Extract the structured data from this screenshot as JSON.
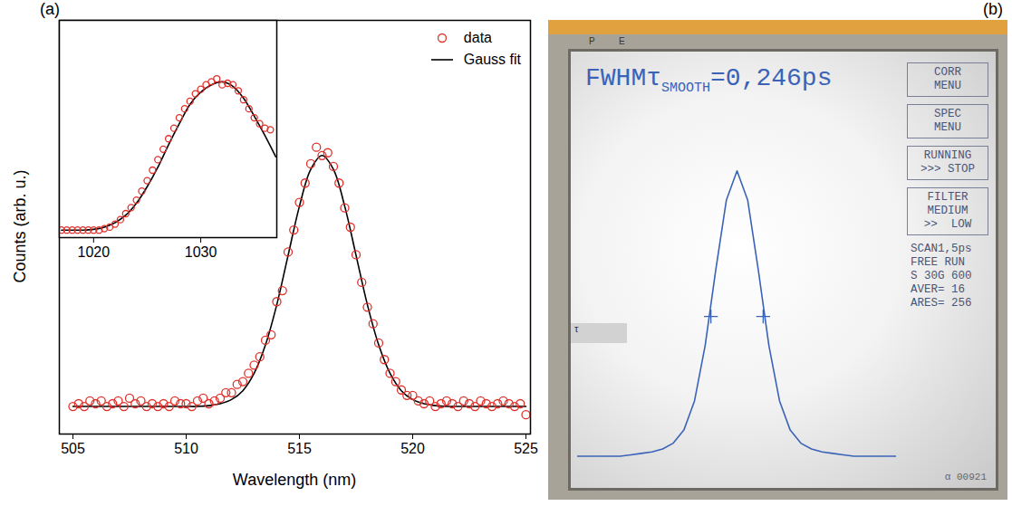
{
  "chart_data": [
    {
      "type": "scatter",
      "panel": "(a)",
      "x_label": "Wavelength (nm)",
      "y_label": "Counts (arb. u.)",
      "xlim": [
        504.4,
        525.2
      ],
      "xticks": [
        505,
        510,
        515,
        520,
        525
      ],
      "ylim": [
        0,
        1.5
      ],
      "tick_labels": "x",
      "legend": "top-right",
      "series": [
        {
          "name": "data",
          "type": "scatter",
          "marker": "circle",
          "color": "#e0302a",
          "x": [
            505.0,
            505.25,
            505.5,
            505.75,
            506.0,
            506.25,
            506.5,
            506.75,
            507.0,
            507.25,
            507.5,
            507.75,
            508.0,
            508.25,
            508.5,
            508.75,
            509.0,
            509.25,
            509.5,
            509.75,
            510.0,
            510.25,
            510.5,
            510.75,
            511.0,
            511.25,
            511.5,
            511.75,
            512.0,
            512.25,
            512.5,
            512.75,
            513.0,
            513.25,
            513.5,
            513.75,
            514.0,
            514.25,
            514.5,
            514.75,
            515.0,
            515.25,
            515.5,
            515.75,
            516.0,
            516.25,
            516.5,
            516.75,
            517.0,
            517.25,
            517.5,
            517.75,
            518.0,
            518.25,
            518.5,
            518.75,
            519.0,
            519.25,
            519.5,
            519.75,
            520.0,
            520.25,
            520.5,
            520.75,
            521.0,
            521.25,
            521.5,
            521.75,
            522.0,
            522.25,
            522.5,
            522.75,
            523.0,
            523.25,
            523.5,
            523.75,
            524.0,
            524.25,
            524.5,
            524.75,
            525.0
          ],
          "values": [
            0.1,
            0.11,
            0.1,
            0.12,
            0.11,
            0.12,
            0.1,
            0.11,
            0.12,
            0.1,
            0.13,
            0.11,
            0.12,
            0.1,
            0.11,
            0.1,
            0.11,
            0.1,
            0.12,
            0.11,
            0.11,
            0.1,
            0.12,
            0.13,
            0.11,
            0.12,
            0.13,
            0.15,
            0.15,
            0.18,
            0.19,
            0.22,
            0.25,
            0.28,
            0.34,
            0.36,
            0.48,
            0.52,
            0.66,
            0.74,
            0.84,
            0.91,
            0.98,
            1.04,
            1.01,
            1.02,
            0.97,
            0.91,
            0.82,
            0.75,
            0.65,
            0.55,
            0.46,
            0.4,
            0.33,
            0.27,
            0.22,
            0.19,
            0.16,
            0.14,
            0.14,
            0.12,
            0.11,
            0.12,
            0.1,
            0.11,
            0.12,
            0.11,
            0.1,
            0.12,
            0.11,
            0.1,
            0.12,
            0.11,
            0.1,
            0.11,
            0.12,
            0.11,
            0.1,
            0.11,
            0.07
          ]
        },
        {
          "name": "Gauss fit",
          "type": "line",
          "line_style": "solid",
          "color": "#000000",
          "x": [
            505.0,
            505.5,
            506.0,
            506.5,
            507.0,
            507.5,
            508.0,
            508.5,
            509.0,
            509.5,
            510.0,
            510.5,
            511.0,
            511.5,
            512.0,
            512.5,
            513.0,
            513.5,
            514.0,
            514.5,
            515.0,
            515.5,
            516.0,
            516.5,
            517.0,
            517.5,
            518.0,
            518.5,
            519.0,
            519.5,
            520.0,
            520.5,
            521.0,
            521.5,
            522.0,
            522.5,
            523.0,
            523.5,
            524.0,
            524.5,
            525.0
          ],
          "values": [
            0.1,
            0.1,
            0.1,
            0.1,
            0.1,
            0.1,
            0.1,
            0.1,
            0.1,
            0.1,
            0.1,
            0.1,
            0.103,
            0.11,
            0.125,
            0.157,
            0.22,
            0.323,
            0.469,
            0.648,
            0.826,
            0.96,
            1.01,
            0.96,
            0.826,
            0.648,
            0.469,
            0.323,
            0.22,
            0.157,
            0.125,
            0.11,
            0.103,
            0.1,
            0.1,
            0.1,
            0.1,
            0.1,
            0.1,
            0.1,
            0.1
          ]
        }
      ]
    },
    {
      "type": "scatter",
      "xlim": [
        1016.8,
        1037.1
      ],
      "xticks": [
        1020,
        1030
      ],
      "ylim": [
        0,
        1.45
      ],
      "tick_labels": "x",
      "series": [
        {
          "name": "data",
          "type": "scatter",
          "marker": "circle",
          "color": "#e0302a",
          "x": [
            1017,
            1017.5,
            1018,
            1018.5,
            1019,
            1019.5,
            1020,
            1020.5,
            1021,
            1021.5,
            1022,
            1022.5,
            1023,
            1023.5,
            1024,
            1024.5,
            1025,
            1025.5,
            1026,
            1026.5,
            1027,
            1027.5,
            1028,
            1028.5,
            1029,
            1029.5,
            1030,
            1030.5,
            1031,
            1031.5,
            1032,
            1032.5,
            1033,
            1033.5,
            1034,
            1034.5,
            1035,
            1035.5,
            1036,
            1036.5
          ],
          "values": [
            0.05,
            0.05,
            0.05,
            0.05,
            0.05,
            0.05,
            0.05,
            0.05,
            0.06,
            0.07,
            0.09,
            0.12,
            0.16,
            0.2,
            0.25,
            0.31,
            0.38,
            0.45,
            0.52,
            0.59,
            0.66,
            0.73,
            0.8,
            0.86,
            0.91,
            0.96,
            0.99,
            1.02,
            1.04,
            1.06,
            1.02,
            1.03,
            1.02,
            0.98,
            0.92,
            0.86,
            0.8,
            0.76,
            0.73,
            0.72
          ]
        },
        {
          "name": "Gauss fit",
          "type": "line",
          "line_style": "solid",
          "color": "#000000",
          "x": [
            1017,
            1018,
            1019,
            1020,
            1021,
            1022,
            1023,
            1024,
            1025,
            1026,
            1027,
            1028,
            1029,
            1030,
            1031,
            1032,
            1033,
            1034,
            1035,
            1036,
            1037
          ],
          "values": [
            0.05,
            0.05,
            0.05,
            0.055,
            0.07,
            0.1,
            0.15,
            0.23,
            0.34,
            0.47,
            0.62,
            0.76,
            0.89,
            0.97,
            1.02,
            1.04,
            1.01,
            0.93,
            0.81,
            0.68,
            0.54
          ]
        }
      ]
    },
    {
      "type": "line",
      "panel": "(b)",
      "title": "FWHMτSMOOTH=0,246ps",
      "color": "#3a63b8",
      "tick_labels": false,
      "x": [
        -0.75,
        -0.7,
        -0.65,
        -0.6,
        -0.55,
        -0.5,
        -0.45,
        -0.4,
        -0.35,
        -0.3,
        -0.25,
        -0.2,
        -0.15,
        -0.1,
        -0.05,
        0,
        0.05,
        0.1,
        0.15,
        0.2,
        0.25,
        0.3,
        0.35,
        0.4,
        0.45,
        0.5,
        0.55,
        0.6,
        0.65,
        0.7,
        0.75
      ],
      "values": [
        0.02,
        0.02,
        0.02,
        0.02,
        0.02,
        0.025,
        0.03,
        0.035,
        0.045,
        0.065,
        0.11,
        0.21,
        0.4,
        0.66,
        0.9,
        1.0,
        0.9,
        0.66,
        0.4,
        0.21,
        0.11,
        0.065,
        0.045,
        0.035,
        0.03,
        0.025,
        0.02,
        0.02,
        0.02,
        0.02,
        0.02
      ],
      "xlim": [
        -0.75,
        0.75
      ],
      "ylim": [
        0,
        1.15
      ],
      "fwhm_markers": {
        "x": [
          -0.123,
          0.123
        ],
        "values": [
          0.5,
          0.5
        ]
      },
      "menu": [
        [
          "CORR",
          "MENU"
        ],
        [
          "SPEC",
          "MENU"
        ],
        [
          "RUNNING",
          ">>> STOP"
        ],
        [
          "FILTER",
          "MEDIUM",
          ">>  LOW"
        ]
      ],
      "status": [
        "SCAN1,5ps",
        "FREE RUN",
        "S 30G 600",
        "AVER= 16",
        "ARES= 256"
      ],
      "annotations": [
        "P",
        "E",
        "τ",
        "α 00921"
      ]
    }
  ]
}
